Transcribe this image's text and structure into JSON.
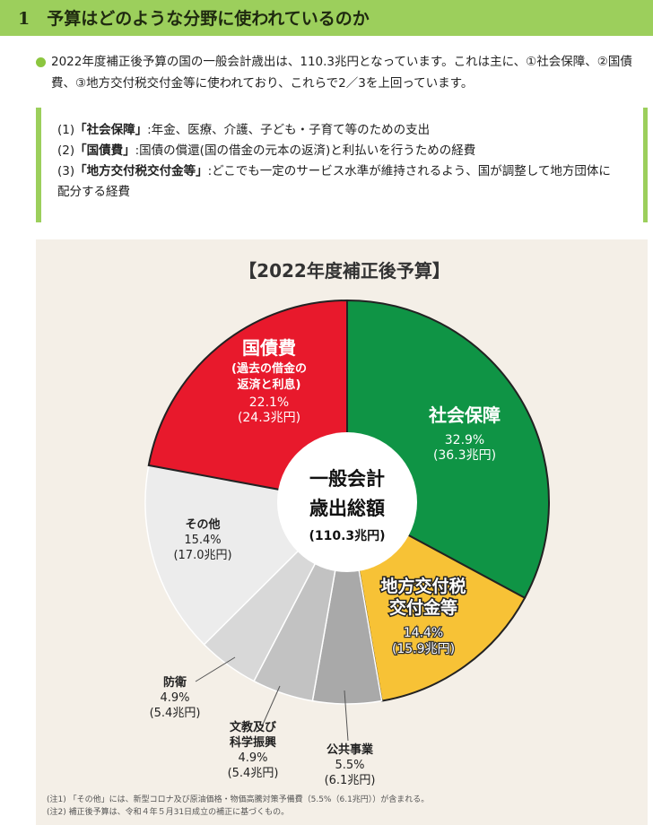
{
  "header": {
    "title": "1　予算はどのような分野に使われているのか"
  },
  "intro": {
    "text": "2022年度補正後予算の国の一般会計歳出は、110.3兆円となっています。これは主に、①社会保障、②国債費、③地方交付税交付金等に使われており、これらで2／3を上回っています。"
  },
  "definitions": [
    {
      "num": "(1)",
      "term": "「社会保障」",
      "desc": ":年金、医療、介護、子ども・子育て等のための支出"
    },
    {
      "num": "(2)",
      "term": "「国債費」",
      "desc": ":国債の償還(国の借金の元本の返済)と利払いを行うための経費"
    },
    {
      "num": "(3)",
      "term": "「地方交付税交付金等」",
      "desc": ":どこでも一定のサービス水準が維持されるよう、国が調整して地方団体に配分する経費"
    }
  ],
  "chart_data": {
    "type": "pie",
    "title": "【2022年度補正後予算】",
    "center_label": [
      "一般会計",
      "歳出総額",
      "(110.3兆円)"
    ],
    "slices": [
      {
        "name": "社会保障",
        "percent": 32.9,
        "amount": "36.3兆円",
        "pct_label": "32.9%",
        "amt_label": "(36.3兆円)",
        "color": "#0f9445"
      },
      {
        "name": "地方交付税交付金等",
        "name_lines": [
          "地方交付税",
          "交付金等"
        ],
        "percent": 14.4,
        "amount": "15.9兆円",
        "pct_label": "14.4%",
        "amt_label": "(15.9兆円)",
        "color": "#f7c236"
      },
      {
        "name": "公共事業",
        "percent": 5.5,
        "amount": "6.1兆円",
        "pct_label": "5.5%",
        "amt_label": "(6.1兆円)",
        "color": "#a9a9a9"
      },
      {
        "name": "文教及び科学振興",
        "name_lines": [
          "文教及び",
          "科学振興"
        ],
        "percent": 4.9,
        "amount": "5.4兆円",
        "pct_label": "4.9%",
        "amt_label": "(5.4兆円)",
        "color": "#c2c2c2"
      },
      {
        "name": "防衛",
        "percent": 4.9,
        "amount": "5.4兆円",
        "pct_label": "4.9%",
        "amt_label": "(5.4兆円)",
        "color": "#d8d8d8"
      },
      {
        "name": "その他",
        "percent": 15.4,
        "amount": "17.0兆円",
        "pct_label": "15.4%",
        "amt_label": "(17.0兆円)",
        "color": "#ececec"
      },
      {
        "name": "国債費",
        "sub_lines": [
          "(過去の借金の",
          "返済と利息)"
        ],
        "percent": 22.1,
        "amount": "24.3兆円",
        "pct_label": "22.1%",
        "amt_label": "(24.3兆円)",
        "color": "#e8192c"
      }
    ],
    "notes": [
      "(注1) 「その他」には、新型コロナ及び原油価格・物価高騰対策予備費（5.5%（6.1兆円））が含まれる。",
      "(注2) 補正後予算は、令和４年５月31日成立の補正に基づくもの。"
    ]
  }
}
